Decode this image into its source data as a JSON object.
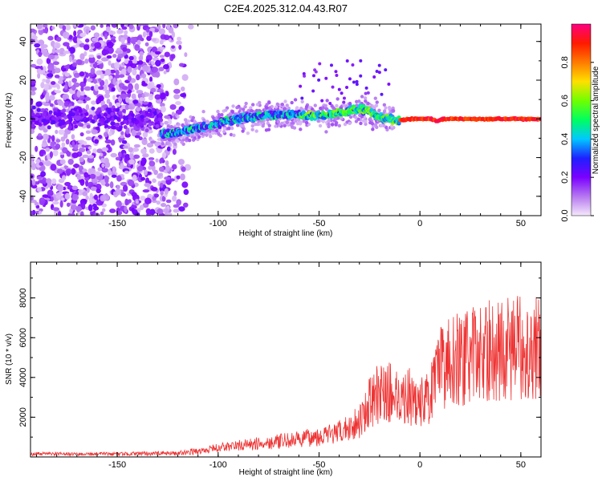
{
  "title": "C2E4.2025.312.04.43.R07",
  "chart_data": [
    {
      "type": "heatmap",
      "xlabel": "Height of straight line (km)",
      "ylabel": "Frequency (Hz)",
      "xlim": [
        -193,
        60
      ],
      "ylim": [
        -50,
        49
      ],
      "xticks": [
        -150,
        -100,
        -50,
        0,
        50
      ],
      "yticks": [
        -40,
        -20,
        0,
        20,
        40
      ],
      "colorbar": {
        "label": "Normalized spectral amplitude",
        "range": [
          0,
          1
        ],
        "ticks": [
          "0.0",
          "0.2",
          "0.4",
          "0.6",
          "0.8"
        ],
        "colors": [
          "#f4e9fb",
          "#b678f0",
          "#7a00ff",
          "#1d20ff",
          "#00c8ff",
          "#00ff60",
          "#70ff00",
          "#ffe000",
          "#ff7a00",
          "#ff1a00",
          "#ff0080"
        ]
      },
      "trace": {
        "description": "dominant frequency ridge",
        "x": [
          -128,
          -115,
          -105,
          -95,
          -85,
          -75,
          -65,
          -55,
          -45,
          -35,
          -30,
          -25,
          -20,
          -15,
          -10,
          -5,
          0,
          5,
          9,
          12,
          20,
          30,
          40,
          50,
          60
        ],
        "y": [
          -8,
          -6,
          -4,
          -1,
          1,
          2,
          2,
          2,
          2,
          4,
          5,
          4,
          1,
          0,
          -1,
          0,
          0,
          0,
          -1,
          0,
          0,
          0,
          0,
          0,
          0
        ]
      }
    },
    {
      "type": "line",
      "xlabel": "Height of straight line (km)",
      "ylabel": "SNR (10 * v/v)",
      "xlim": [
        -193,
        60
      ],
      "ylim": [
        0,
        9800
      ],
      "xticks": [
        -150,
        -100,
        -50,
        0,
        50
      ],
      "yticks": [
        2000,
        4000,
        6000,
        8000
      ],
      "color": "#ee3333",
      "envelope": {
        "x": [
          -193,
          -150,
          -120,
          -110,
          -100,
          -80,
          -60,
          -40,
          -30,
          -25,
          -20,
          -15,
          -10,
          -5,
          0,
          5,
          10,
          15,
          20,
          30,
          40,
          50,
          60
        ],
        "y": [
          200,
          200,
          250,
          400,
          700,
          1000,
          1300,
          1800,
          2700,
          4000,
          4800,
          4800,
          4500,
          4500,
          4000,
          4500,
          6500,
          7500,
          7200,
          7800,
          8000,
          8200,
          8200
        ]
      }
    }
  ]
}
